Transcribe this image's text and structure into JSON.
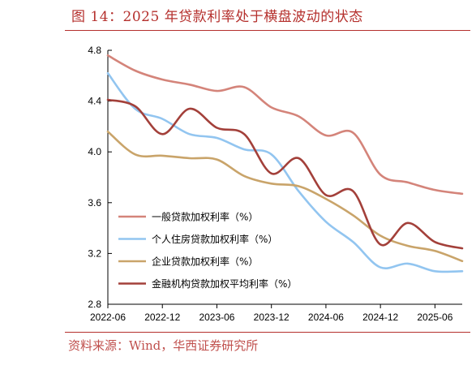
{
  "title": "图 14：2025 年贷款利率处于横盘波动的状态",
  "source": "资料来源：Wind，华西证券研究所",
  "chart_data": {
    "type": "line",
    "title": "图 14：2025 年贷款利率处于横盘波动的状态",
    "xlabel": "",
    "ylabel": "",
    "ylim": [
      2.8,
      4.8
    ],
    "yticks": [
      "2.8",
      "3.2",
      "3.6",
      "4.0",
      "4.4",
      "4.8"
    ],
    "xlim": [
      "2022-06",
      "2025-09"
    ],
    "xticks": [
      "2022-06",
      "2022-12",
      "2023-06",
      "2023-12",
      "2024-06",
      "2024-12",
      "2025-06"
    ],
    "grid": false,
    "legend_position": "bottom-left",
    "x": [
      "2022-06",
      "2022-09",
      "2022-12",
      "2023-03",
      "2023-06",
      "2023-09",
      "2023-12",
      "2024-03",
      "2024-06",
      "2024-09",
      "2024-12",
      "2025-03",
      "2025-06",
      "2025-09"
    ],
    "series": [
      {
        "name": "一般贷款加权利率（%）",
        "color": "#d4847a",
        "values": [
          4.76,
          4.64,
          4.57,
          4.53,
          4.48,
          4.51,
          4.35,
          4.28,
          4.13,
          4.15,
          3.82,
          3.76,
          3.7,
          3.67
        ]
      },
      {
        "name": "个人住房贷款加权利率（%）",
        "color": "#92c5f0",
        "values": [
          4.62,
          4.34,
          4.26,
          4.14,
          4.11,
          4.02,
          3.98,
          3.69,
          3.45,
          3.29,
          3.09,
          3.12,
          3.06,
          3.06
        ]
      },
      {
        "name": "企业贷款加权利率（%）",
        "color": "#c9a46a",
        "values": [
          4.16,
          3.98,
          3.97,
          3.95,
          3.94,
          3.81,
          3.75,
          3.73,
          3.63,
          3.5,
          3.34,
          3.26,
          3.22,
          3.14
        ]
      },
      {
        "name": "金融机构贷款加权平均利率（%）",
        "color": "#a3403a",
        "values": [
          4.41,
          4.36,
          4.14,
          4.34,
          4.19,
          4.14,
          3.83,
          3.95,
          3.66,
          3.69,
          3.27,
          3.44,
          3.29,
          3.24
        ]
      }
    ]
  }
}
